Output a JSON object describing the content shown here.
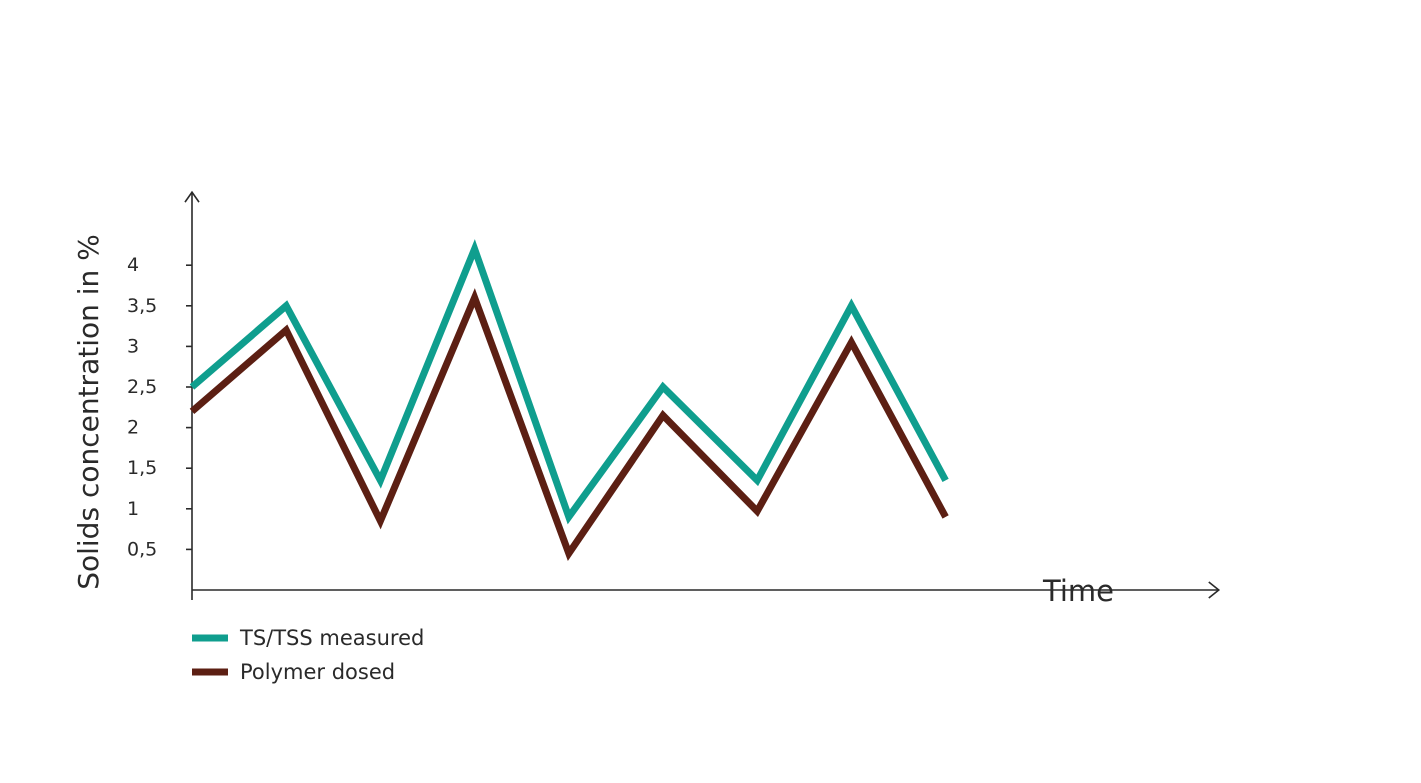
{
  "chart_data": {
    "type": "line",
    "title": "",
    "xlabel": "Time",
    "ylabel": "Solids concentration in %",
    "yticks": [
      {
        "value": 0.5,
        "label": "0,5"
      },
      {
        "value": 1,
        "label": "1"
      },
      {
        "value": 1.5,
        "label": "1,5"
      },
      {
        "value": 2,
        "label": "2"
      },
      {
        "value": 2.5,
        "label": "2,5"
      },
      {
        "value": 3,
        "label": "3"
      },
      {
        "value": 3.5,
        "label": "3,5"
      },
      {
        "value": 4,
        "label": "4"
      }
    ],
    "ylim": [
      0,
      4.9
    ],
    "xlim": [
      0,
      10.9
    ],
    "grid": false,
    "legend_position": "bottom-left",
    "x": [
      0,
      1,
      2,
      3,
      4,
      5,
      6,
      7,
      8
    ],
    "series": [
      {
        "name": "TS/TSS measured",
        "color": "#0f9e8e",
        "values": [
          2.5,
          3.5,
          1.35,
          4.2,
          0.9,
          2.5,
          1.35,
          3.5,
          1.35
        ]
      },
      {
        "name": "Polymer dosed",
        "color": "#5c1f13",
        "values": [
          2.2,
          3.2,
          0.85,
          3.6,
          0.45,
          2.15,
          0.97,
          3.05,
          0.9
        ]
      }
    ]
  }
}
